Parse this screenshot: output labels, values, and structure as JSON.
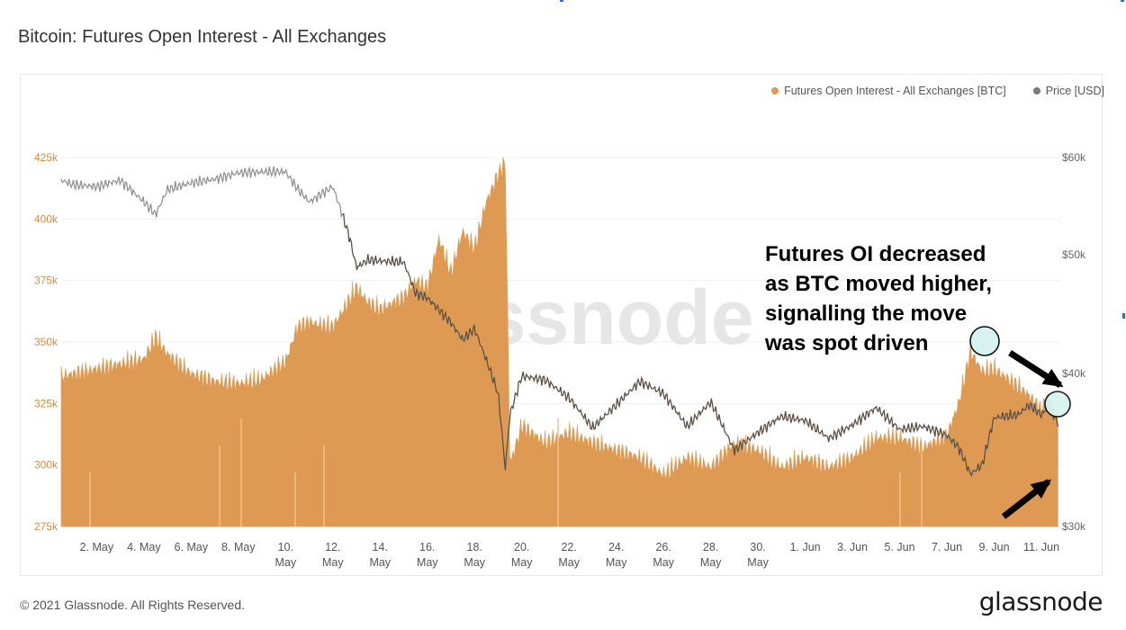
{
  "title": "Bitcoin: Futures Open Interest - All Exchanges",
  "legend": {
    "oi_label": "Futures Open Interest - All Exchanges [BTC]",
    "price_label": "Price [USD]"
  },
  "colors": {
    "oi": "#de9a52",
    "price": "#8f8f8f",
    "legend_oi_dot": "#de9a52",
    "legend_price_dot": "#7a7a7a",
    "circle_fill": "#d8f3ef",
    "watermark": "#e6e6e6"
  },
  "watermark_text": "glassnode",
  "annotation": {
    "lines": [
      "Futures OI decreased",
      "as BTC moved higher,",
      "signalling the move",
      "was spot driven"
    ]
  },
  "footer": {
    "copyright": "© 2021 Glassnode. All Rights Reserved.",
    "brand": "glassnode"
  },
  "chart_data": {
    "type": "area",
    "x_tick_labels": [
      [
        "2. May"
      ],
      [
        "4. May"
      ],
      [
        "6. May"
      ],
      [
        "8. May"
      ],
      [
        "10.",
        "May"
      ],
      [
        "12.",
        "May"
      ],
      [
        "14.",
        "May"
      ],
      [
        "16.",
        "May"
      ],
      [
        "18.",
        "May"
      ],
      [
        "20.",
        "May"
      ],
      [
        "22.",
        "May"
      ],
      [
        "24.",
        "May"
      ],
      [
        "26.",
        "May"
      ],
      [
        "28.",
        "May"
      ],
      [
        "30.",
        "May"
      ],
      [
        "1. Jun"
      ],
      [
        "3. Jun"
      ],
      [
        "5. Jun"
      ],
      [
        "7. Jun"
      ],
      [
        "9. Jun"
      ],
      [
        "11. Jun"
      ]
    ],
    "x_range_days": [
      0.5,
      42.8
    ],
    "y_left": {
      "ticks": [
        "275k",
        "300k",
        "325k",
        "350k",
        "375k",
        "400k",
        "425k"
      ],
      "ylim": [
        275000,
        425000
      ]
    },
    "y_right": {
      "ticks": [
        "$30k",
        "$40k",
        "$50k",
        "$60k"
      ],
      "ylim": [
        30000,
        60000
      ],
      "scale": "log"
    },
    "grid": true,
    "legend_position": "top-right",
    "series": [
      {
        "name": "Futures Open Interest - All Exchanges [BTC]",
        "axis": "left",
        "x": [
          0.5,
          1,
          2,
          3,
          4,
          4.5,
          5,
          6,
          7,
          8,
          9,
          10,
          10.5,
          11,
          12,
          13,
          13.5,
          14,
          15,
          15.5,
          16,
          16.5,
          17,
          17.5,
          18,
          18.5,
          19,
          19.3,
          19.5,
          20,
          21,
          22,
          23,
          24,
          25,
          26,
          27,
          28,
          29,
          30,
          31,
          32,
          33,
          34,
          35,
          36,
          37,
          38,
          38.5,
          39,
          39.5,
          40,
          41,
          41.5,
          42,
          42.3,
          42.7
        ],
        "values": [
          336000,
          337000,
          339000,
          341000,
          343000,
          352000,
          345000,
          337000,
          334000,
          333000,
          335000,
          342000,
          356000,
          358000,
          356000,
          372000,
          366000,
          363000,
          368000,
          375000,
          372000,
          392000,
          378000,
          395000,
          388000,
          407000,
          418000,
          423000,
          300000,
          316000,
          309000,
          313000,
          309000,
          306000,
          303000,
          296000,
          303000,
          299000,
          309000,
          306000,
          299000,
          303000,
          299000,
          303000,
          311000,
          311000,
          307000,
          312000,
          325000,
          346000,
          338000,
          339000,
          332000,
          328000,
          322000,
          328000,
          318000
        ]
      },
      {
        "name": "Price [USD]",
        "axis": "right",
        "x": [
          0.5,
          1,
          2,
          3,
          4,
          4.5,
          5,
          6,
          7,
          8,
          9,
          10,
          10.5,
          11,
          12,
          12.7,
          13,
          13.5,
          14,
          15,
          15.5,
          16,
          17,
          17.5,
          18,
          19,
          19.3,
          19.5,
          20,
          21,
          22,
          23,
          24,
          25,
          26,
          27,
          28,
          29,
          30,
          31,
          32,
          33,
          34,
          35,
          36,
          37,
          38,
          38.5,
          39,
          39.5,
          40,
          41,
          41.5,
          42,
          42.3,
          42.7
        ],
        "values": [
          57500,
          57000,
          56800,
          57500,
          55200,
          53900,
          56500,
          57200,
          57600,
          58300,
          58400,
          58400,
          56600,
          55200,
          56800,
          51700,
          48800,
          49500,
          49400,
          49300,
          46500,
          46100,
          44000,
          42600,
          43500,
          38500,
          33400,
          37000,
          39800,
          39500,
          38200,
          36100,
          37700,
          39400,
          38500,
          36200,
          37900,
          34600,
          35800,
          36900,
          36600,
          35400,
          36300,
          37500,
          36000,
          36200,
          35600,
          34800,
          33100,
          33700,
          36800,
          37000,
          37700,
          37000,
          37600,
          36500
        ]
      }
    ]
  }
}
